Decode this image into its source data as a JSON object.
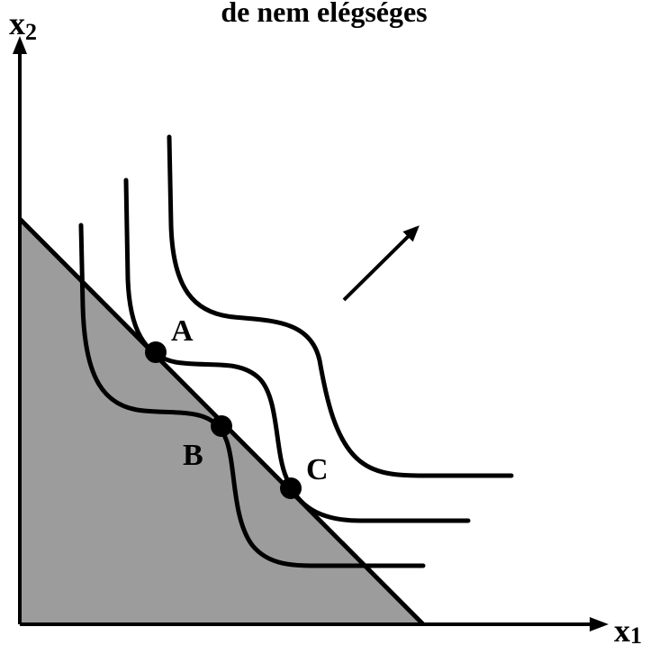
{
  "title": "de nem elégséges",
  "axes": {
    "y": {
      "base": "x",
      "sub": "2"
    },
    "x": {
      "base": "x",
      "sub": "1"
    }
  },
  "points": [
    {
      "label": "A"
    },
    {
      "label": "B"
    },
    {
      "label": "C"
    }
  ]
}
